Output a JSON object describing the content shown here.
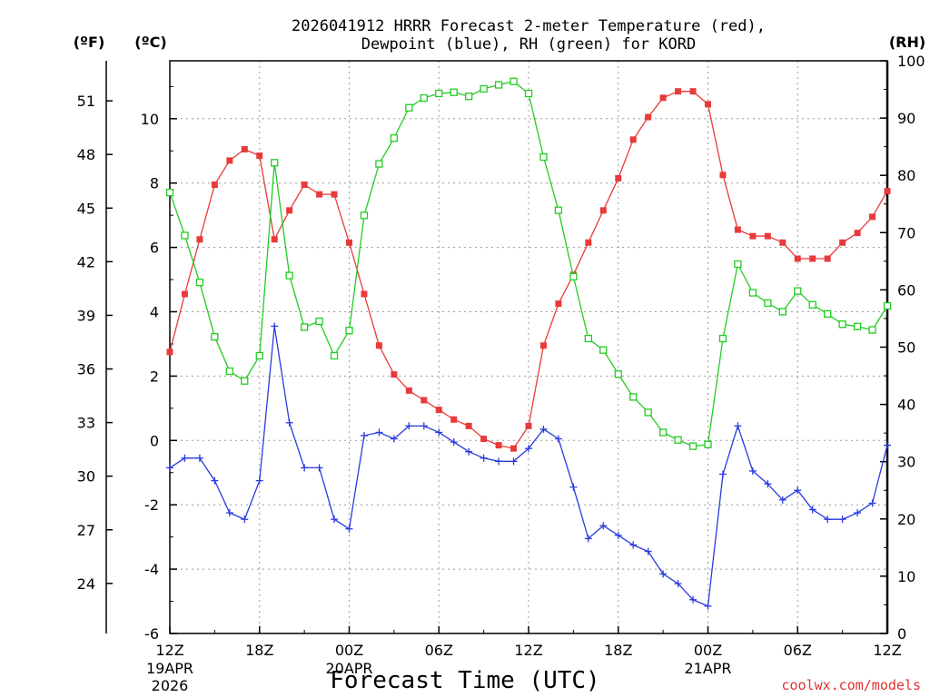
{
  "chart_data": {
    "type": "line",
    "title": "2026041912 HRRR Forecast 2-meter Temperature (red),",
    "subtitle": "Dewpoint (blue), RH (green) for KORD",
    "xlabel": "Forecast Time (UTC)",
    "credit": "coolwx.com/models",
    "units": {
      "fahrenheit": "(ºF)",
      "celsius": "(ºC)",
      "rh": "(RH)"
    },
    "hours": [
      0,
      1,
      2,
      3,
      4,
      5,
      6,
      7,
      8,
      9,
      10,
      11,
      12,
      13,
      14,
      15,
      16,
      17,
      18,
      19,
      20,
      21,
      22,
      23,
      24,
      25,
      26,
      27,
      28,
      29,
      30,
      31,
      32,
      33,
      34,
      35,
      36,
      37,
      38,
      39,
      40,
      41,
      42,
      43,
      44,
      45,
      46,
      47,
      48
    ],
    "xlim": [
      0,
      48
    ],
    "ylim_celsius": [
      -6,
      11.8
    ],
    "ylim_rh": [
      0,
      100
    ],
    "x_ticks": [
      {
        "hour": 0,
        "label": "12Z",
        "date": "19APR",
        "year": "2026"
      },
      {
        "hour": 6,
        "label": "18Z"
      },
      {
        "hour": 12,
        "label": "00Z",
        "date": "20APR"
      },
      {
        "hour": 18,
        "label": "06Z"
      },
      {
        "hour": 24,
        "label": "12Z"
      },
      {
        "hour": 30,
        "label": "18Z"
      },
      {
        "hour": 36,
        "label": "00Z",
        "date": "21APR"
      },
      {
        "hour": 42,
        "label": "06Z"
      },
      {
        "hour": 48,
        "label": "12Z"
      }
    ],
    "celsius_ticks": [
      "-6",
      "-4",
      "-2",
      "0",
      "2",
      "4",
      "6",
      "8",
      "10"
    ],
    "fahrenheit_ticks": [
      "24",
      "27",
      "30",
      "33",
      "36",
      "39",
      "42",
      "45",
      "48",
      "51"
    ],
    "rh_ticks": [
      "0",
      "10",
      "20",
      "30",
      "40",
      "50",
      "60",
      "70",
      "80",
      "90",
      "100"
    ],
    "series": [
      {
        "name": "Temperature",
        "color": "#e83a3a",
        "marker": "filled-square",
        "values": [
          2.75,
          4.55,
          6.25,
          7.95,
          8.7,
          9.05,
          8.85,
          6.25,
          7.15,
          7.95,
          7.65,
          7.65,
          6.15,
          4.55,
          2.95,
          2.05,
          1.55,
          1.25,
          0.95,
          0.65,
          0.45,
          0.05,
          -0.15,
          -0.25,
          0.45,
          2.95,
          4.25,
          5.15,
          6.15,
          7.15,
          8.15,
          9.35,
          10.05,
          10.65,
          10.85,
          10.85,
          10.45,
          8.25,
          6.55,
          6.35,
          6.35,
          6.15,
          5.65,
          5.65,
          5.65,
          6.15,
          6.45,
          6.95,
          7.75
        ]
      },
      {
        "name": "Dewpoint",
        "color": "#2a3ae0",
        "marker": "plus",
        "values": [
          -0.85,
          -0.55,
          -0.55,
          -1.25,
          -2.25,
          -2.45,
          -1.25,
          3.55,
          0.55,
          -0.85,
          -0.85,
          -2.45,
          -2.75,
          0.15,
          0.25,
          0.05,
          0.45,
          0.45,
          0.25,
          -0.05,
          -0.35,
          -0.55,
          -0.65,
          -0.65,
          -0.25,
          0.35,
          0.05,
          -1.45,
          -3.05,
          -2.65,
          -2.95,
          -3.25,
          -3.45,
          -4.15,
          -4.45,
          -4.95,
          -5.15,
          -1.05,
          0.45,
          -0.95,
          -1.35,
          -1.85,
          -1.55,
          -2.15,
          -2.45,
          -2.45,
          -2.25,
          -1.95,
          -0.15
        ]
      },
      {
        "name": "RH",
        "color": "#22cc22",
        "marker": "open-square",
        "values": [
          77,
          69.5,
          61.3,
          51.8,
          45.8,
          44.1,
          48.5,
          82.2,
          62.5,
          53.5,
          54.5,
          48.5,
          52.9,
          73,
          82,
          86.5,
          91.8,
          93.5,
          94.3,
          94.5,
          93.8,
          95.1,
          95.8,
          96.4,
          94.3,
          83.2,
          73.9,
          62.3,
          51.5,
          49.5,
          45.3,
          41.3,
          38.6,
          35.1,
          33.8,
          32.7,
          33,
          51.5,
          64.5,
          59.5,
          57.7,
          56.2,
          59.8,
          57.4,
          55.8,
          54,
          53.6,
          53,
          57.2
        ]
      }
    ]
  }
}
